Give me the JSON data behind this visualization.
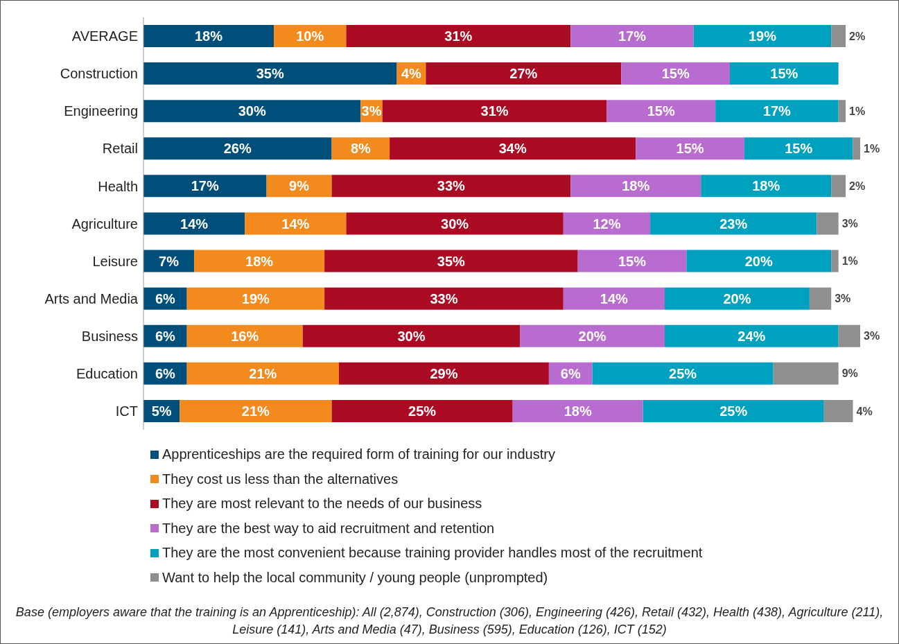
{
  "chart_data": {
    "type": "bar",
    "orientation": "horizontal",
    "stacked": true,
    "legend": "bottom",
    "categories": [
      "AVERAGE",
      "Construction",
      "Engineering",
      "Retail",
      "Health",
      "Agriculture",
      "Leisure",
      "Arts and Media",
      "Business",
      "Education",
      "ICT"
    ],
    "series": [
      {
        "name": "Apprenticeships are the required form of training for our industry",
        "color": "#004f7a",
        "values": [
          18,
          35,
          30,
          26,
          17,
          14,
          7,
          6,
          6,
          6,
          5
        ],
        "value_labels": [
          "18%",
          "35%",
          "30%",
          "26%",
          "17%",
          "14%",
          "7%",
          "6%",
          "6%",
          "6%",
          "5%"
        ]
      },
      {
        "name": "They cost us less than the alternatives",
        "color": "#f28a1d",
        "values": [
          10,
          4,
          3,
          8,
          9,
          14,
          18,
          19,
          16,
          21,
          21
        ],
        "value_labels": [
          "10%",
          "4%",
          "3%",
          "8%",
          "9%",
          "14%",
          "18%",
          "19%",
          "16%",
          "21%",
          "21%"
        ]
      },
      {
        "name": "They are most relevant to the needs of our business",
        "color": "#aa0a22",
        "values": [
          31,
          27,
          31,
          34,
          33,
          30,
          35,
          33,
          30,
          29,
          25
        ],
        "value_labels": [
          "31%",
          "27%",
          "31%",
          "34%",
          "33%",
          "30%",
          "35%",
          "33%",
          "30%",
          "29%",
          "25%"
        ]
      },
      {
        "name": "They are the best way to aid recruitment and retention",
        "color": "#b86ccf",
        "values": [
          17,
          15,
          15,
          15,
          18,
          12,
          15,
          14,
          20,
          6,
          18
        ],
        "value_labels": [
          "17%",
          "15%",
          "15%",
          "15%",
          "18%",
          "12%",
          "15%",
          "14%",
          "20%",
          "6%",
          "18%"
        ]
      },
      {
        "name": "They are the most convenient because training provider handles most of the recruitment",
        "color": "#00a0bf",
        "values": [
          19,
          15,
          17,
          15,
          18,
          23,
          20,
          20,
          24,
          25,
          25
        ],
        "value_labels": [
          "19%",
          "15%",
          "17%",
          "15%",
          "18%",
          "23%",
          "20%",
          "20%",
          "24%",
          "25%",
          "25%"
        ]
      },
      {
        "name": "Want to help the local community / young people (unprompted)",
        "color": "#8f8f8f",
        "values": [
          2,
          null,
          1,
          1,
          2,
          3,
          1,
          3,
          3,
          9,
          4
        ],
        "value_labels": [
          "2%",
          null,
          "1%",
          "1%",
          "2%",
          "3%",
          "1%",
          "3%",
          "3%",
          "9%",
          "4%"
        ]
      }
    ],
    "annotations": [
      "Base (employers aware that the training is an Apprenticeship): All (2,874), Construction (306), Engineering (426), Retail (432), Health (438), Agriculture (211), Leisure (141), Arts and Media (47), Business (595), Education (126), ICT (152)"
    ]
  }
}
